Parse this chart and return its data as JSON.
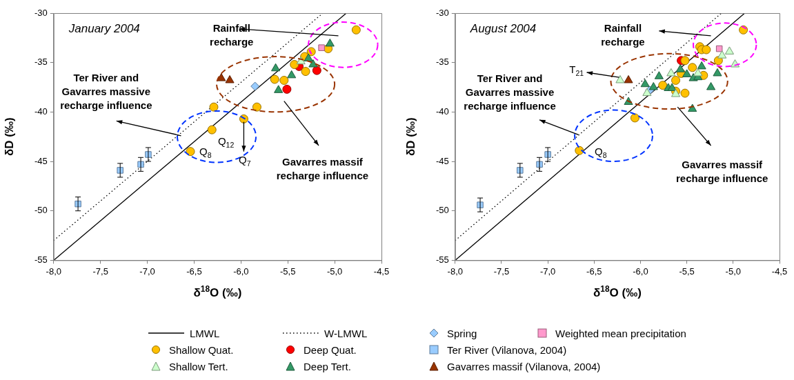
{
  "chart_data": [
    {
      "type": "scatter",
      "title": "January 2004",
      "xlabel": "δ$^{18}$O (‰)",
      "ylabel": "δD (‰)",
      "legend": "bottom",
      "grid": false,
      "xlim": [
        -8,
        -4.5
      ],
      "xticks": [
        {
          "value": -8,
          "label": "-8,0"
        },
        {
          "value": -7.5,
          "label": "-7,5"
        },
        {
          "value": -7,
          "label": "-7,0"
        },
        {
          "value": -6.5,
          "label": "-6,5"
        },
        {
          "value": -6,
          "label": "-6,0"
        },
        {
          "value": -5.5,
          "label": "-5,5"
        },
        {
          "value": -5,
          "label": "-5,0"
        },
        {
          "value": -4.5,
          "label": "-4,5"
        }
      ],
      "ylim": [
        -55,
        -30
      ],
      "yticks": [
        -55,
        -50,
        -45,
        -40,
        -35,
        -30
      ],
      "series": [
        {
          "name": "LMWL",
          "type": "line",
          "color": "#000000",
          "line_style": "solid",
          "marker": "none",
          "x": [
            -8,
            -4.875
          ],
          "values": [
            -55,
            -30
          ]
        },
        {
          "name": "W-LMWL",
          "type": "line",
          "color": "#000000",
          "line_style": "dotted",
          "marker": "none",
          "x": [
            -8,
            -5.125
          ],
          "values": [
            -53,
            -30
          ]
        },
        {
          "name": "Spring",
          "type": "scatter",
          "marker": "diamond",
          "color": "#99ccff",
          "x": [
            -5.85
          ],
          "values": [
            -37.4
          ]
        },
        {
          "name": "Weighted mean precipitation",
          "type": "scatter",
          "marker": "square",
          "color": "#ff99cc",
          "x": [
            -5.14
          ],
          "values": [
            -33.5
          ]
        },
        {
          "name": "Shallow Quat.",
          "type": "scatter",
          "marker": "circle",
          "color": "#ffc000",
          "x": [
            -4.77,
            -5.25,
            -5.32,
            -5.43,
            -5.31,
            -5.64,
            -5.54,
            -6.29,
            -5.83,
            -5.97,
            -6.31,
            -6.54,
            -5.07
          ],
          "values": [
            -31.7,
            -33.9,
            -34.4,
            -35.2,
            -35.9,
            -36.7,
            -36.8,
            -39.5,
            -39.5,
            -40.7,
            -41.8,
            -44.0,
            -33.6
          ]
        },
        {
          "name": "Deep Quat.",
          "type": "scatter",
          "marker": "circle",
          "color": "#ff0000",
          "x": [
            -5.38,
            -5.19,
            -5.51
          ],
          "values": [
            -35.4,
            -35.8,
            -37.7
          ]
        },
        {
          "name": "Ter River (Vilanova, 2004)",
          "type": "scatter",
          "marker": "square",
          "color": "#99ccff",
          "x": [
            -7.74,
            -7.29,
            -7.07,
            -6.99
          ],
          "values": [
            -49.3,
            -45.9,
            -45.3,
            -44.3
          ],
          "errors": [
            0.7,
            0.7,
            0.7,
            0.7
          ]
        },
        {
          "name": "Shallow Tert.",
          "type": "scatter",
          "marker": "triangle",
          "color": "#ccffcc",
          "x": [
            -5.36
          ],
          "values": [
            -34.9
          ]
        },
        {
          "name": "Deep Tert.",
          "type": "scatter",
          "marker": "triangle",
          "color": "#339966",
          "x": [
            -5.05,
            -5.28,
            -5.23,
            -5.63,
            -5.46,
            -5.6
          ],
          "values": [
            -33.1,
            -34.6,
            -35.2,
            -35.6,
            -36.3,
            -37.8
          ]
        },
        {
          "name": "Gavarres massif (Vilanova, 2004)",
          "type": "scatter",
          "marker": "triangle",
          "color": "#993300",
          "x": [
            -6.21,
            -6.12
          ],
          "values": [
            -36.6,
            -36.8
          ]
        }
      ],
      "annotations": [
        "Rainfall\nrecharge",
        "Ter River and\nGavarres massive\nrecharge influence",
        "Gavarres massif\nrecharge influence",
        "Q$_{12}$",
        "Q$_{8}$",
        "Q$_{7}$"
      ]
    },
    {
      "type": "scatter",
      "title": "August 2004",
      "xlabel": "δ$^{18}$O (‰)",
      "ylabel": "δD (‰)",
      "legend": "bottom",
      "grid": false,
      "xlim": [
        -8,
        -4.5
      ],
      "xticks": [
        {
          "value": -8,
          "label": "-8,0"
        },
        {
          "value": -7.5,
          "label": "-7,5"
        },
        {
          "value": -7,
          "label": "-7,0"
        },
        {
          "value": -6.5,
          "label": "-6,5"
        },
        {
          "value": -6,
          "label": "-6,0"
        },
        {
          "value": -5.5,
          "label": "-5,5"
        },
        {
          "value": -5,
          "label": "-5,0"
        },
        {
          "value": -4.5,
          "label": "-4,5"
        }
      ],
      "ylim": [
        -55,
        -30
      ],
      "yticks": [
        -55,
        -50,
        -45,
        -40,
        -35,
        -30
      ],
      "series": [
        {
          "name": "LMWL",
          "type": "line",
          "color": "#000000",
          "line_style": "solid",
          "marker": "none",
          "x": [
            -8,
            -4.875
          ],
          "values": [
            -55,
            -30
          ]
        },
        {
          "name": "W-LMWL",
          "type": "line",
          "color": "#000000",
          "line_style": "dotted",
          "marker": "none",
          "x": [
            -8,
            -5.125
          ],
          "values": [
            -53,
            -30
          ]
        },
        {
          "name": "Spring",
          "type": "scatter",
          "marker": "diamond",
          "color": "#99ccff",
          "x": [
            -5.9
          ],
          "values": [
            -37.8
          ]
        },
        {
          "name": "Weighted mean precipitation",
          "type": "scatter",
          "marker": "square",
          "color": "#ff99cc",
          "x": [
            -5.15
          ],
          "values": [
            -33.6
          ]
        },
        {
          "name": "Shallow Quat.",
          "type": "scatter",
          "marker": "circle",
          "color": "#ffc000",
          "x": [
            -4.89,
            -5.36,
            -5.34,
            -5.29,
            -5.16,
            -5.52,
            -5.44,
            -5.56,
            -5.32,
            -5.62,
            -5.76,
            -5.62,
            -5.52,
            -6.06,
            -6.66
          ],
          "values": [
            -31.7,
            -33.4,
            -33.7,
            -33.7,
            -34.8,
            -34.8,
            -35.5,
            -36.1,
            -36.3,
            -36.8,
            -37.3,
            -37.9,
            -38.1,
            -40.6,
            -43.9
          ]
        },
        {
          "name": "Deep Quat.",
          "type": "scatter",
          "marker": "circle",
          "color": "#ff0000",
          "x": [
            -5.56
          ],
          "values": [
            -34.8
          ]
        },
        {
          "name": "Ter River (Vilanova, 2004)",
          "type": "scatter",
          "marker": "square",
          "color": "#99ccff",
          "x": [
            -7.73,
            -7.3,
            -7.09,
            -7.0
          ],
          "values": [
            -49.4,
            -45.9,
            -45.3,
            -44.3
          ],
          "errors": [
            0.7,
            0.7,
            0.7,
            0.7
          ]
        },
        {
          "name": "Shallow Tert.",
          "type": "scatter",
          "marker": "triangle",
          "color": "#ccffcc",
          "x": [
            -6.22,
            -5.04,
            -5.12,
            -4.98,
            -5.67,
            -5.38,
            -5.93,
            -5.62
          ],
          "values": [
            -36.8,
            -33.9,
            -34.3,
            -35.2,
            -36.1,
            -36.1,
            -38.1,
            -38.2
          ]
        },
        {
          "name": "Deep Tert.",
          "type": "scatter",
          "marker": "triangle",
          "color": "#339966",
          "x": [
            -6.13,
            -5.34,
            -5.57,
            -5.5,
            -5.43,
            -5.38,
            -5.17,
            -5.8,
            -5.95,
            -5.86,
            -5.7,
            -5.66,
            -5.24,
            -5.44
          ],
          "values": [
            -39.0,
            -35.4,
            -35.7,
            -36.2,
            -36.6,
            -36.5,
            -36.1,
            -36.4,
            -37.2,
            -37.5,
            -37.6,
            -37.6,
            -37.5,
            -39.7
          ]
        },
        {
          "name": "Gavarres massif (Vilanova, 2004)",
          "type": "scatter",
          "marker": "triangle",
          "color": "#993300",
          "x": [
            -6.13
          ],
          "values": [
            -36.8
          ]
        }
      ],
      "annotations": [
        "Rainfall\nrecharge",
        "T$_{21}$",
        "Ter River and\nGavarres massive\nrecharge influence",
        "Q$_{8}$",
        "Gavarres massif\nrecharge influence"
      ]
    }
  ]
}
